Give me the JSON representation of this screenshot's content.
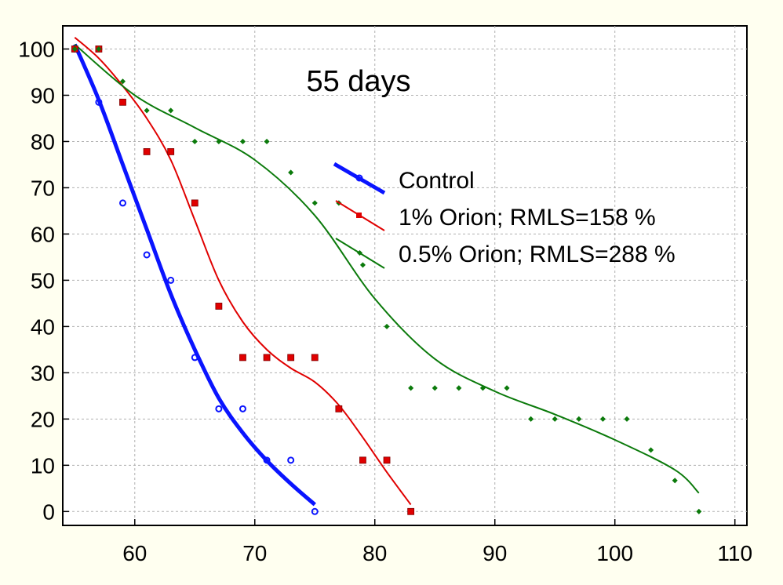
{
  "chart_data": {
    "type": "scatter",
    "title": "55 days",
    "xlabel": "",
    "ylabel": "",
    "xlim": [
      54,
      111
    ],
    "ylim": [
      -3,
      105
    ],
    "xticks": [
      60,
      70,
      80,
      90,
      100,
      110
    ],
    "yticks": [
      0,
      10,
      20,
      30,
      40,
      50,
      60,
      70,
      80,
      90,
      100
    ],
    "grid": true,
    "legend_position": "center-right",
    "series": [
      {
        "name": "Control",
        "color": "#0a14ff",
        "marker": "circle",
        "points": [
          [
            55,
            100
          ],
          [
            57,
            88.5
          ],
          [
            59,
            66.7
          ],
          [
            61,
            55.5
          ],
          [
            63,
            50
          ],
          [
            65,
            33.3
          ],
          [
            67,
            22.2
          ],
          [
            69,
            22.2
          ],
          [
            71,
            11.1
          ],
          [
            73,
            11.1
          ],
          [
            75,
            0
          ]
        ],
        "fit": [
          [
            55,
            101
          ],
          [
            57,
            89
          ],
          [
            59,
            75
          ],
          [
            61,
            61
          ],
          [
            63,
            47
          ],
          [
            65,
            35
          ],
          [
            67,
            24.5
          ],
          [
            69,
            17
          ],
          [
            71,
            11
          ],
          [
            73,
            6
          ],
          [
            75,
            1.5
          ]
        ]
      },
      {
        "name": "1% Orion; RMLS=158 %",
        "color": "#e00000",
        "marker": "square",
        "points": [
          [
            55,
            100
          ],
          [
            57,
            100
          ],
          [
            59,
            88.5
          ],
          [
            61,
            77.8
          ],
          [
            63,
            77.8
          ],
          [
            65,
            66.7
          ],
          [
            67,
            44.4
          ],
          [
            69,
            33.3
          ],
          [
            71,
            33.3
          ],
          [
            73,
            33.3
          ],
          [
            75,
            33.3
          ],
          [
            77,
            22.2
          ],
          [
            79,
            11.1
          ],
          [
            81,
            11.1
          ],
          [
            83,
            0
          ]
        ],
        "fit": [
          [
            55,
            102.5
          ],
          [
            57,
            98
          ],
          [
            59,
            92
          ],
          [
            61,
            85
          ],
          [
            63,
            76
          ],
          [
            65,
            63
          ],
          [
            67,
            50
          ],
          [
            69,
            41
          ],
          [
            71,
            35
          ],
          [
            73,
            31
          ],
          [
            75,
            28
          ],
          [
            77,
            23
          ],
          [
            79,
            16
          ],
          [
            81,
            8.5
          ],
          [
            83,
            1.5
          ]
        ]
      },
      {
        "name": "0.5% Orion; RMLS=288 %",
        "color": "#0b7a0b",
        "marker": "diamond",
        "points": [
          [
            55,
            100
          ],
          [
            57,
            100
          ],
          [
            59,
            93
          ],
          [
            61,
            86.7
          ],
          [
            63,
            86.7
          ],
          [
            65,
            80
          ],
          [
            67,
            80
          ],
          [
            69,
            80
          ],
          [
            71,
            80
          ],
          [
            73,
            73.3
          ],
          [
            75,
            66.7
          ],
          [
            77,
            66.7
          ],
          [
            79,
            53.3
          ],
          [
            81,
            40
          ],
          [
            83,
            26.7
          ],
          [
            85,
            26.7
          ],
          [
            87,
            26.7
          ],
          [
            89,
            26.7
          ],
          [
            91,
            26.7
          ],
          [
            93,
            20
          ],
          [
            95,
            20
          ],
          [
            97,
            20
          ],
          [
            99,
            20
          ],
          [
            101,
            20
          ],
          [
            103,
            13.3
          ],
          [
            105,
            6.7
          ],
          [
            107,
            0
          ]
        ],
        "fit": [
          [
            55,
            101
          ],
          [
            60,
            90
          ],
          [
            65,
            83
          ],
          [
            70,
            76
          ],
          [
            75,
            64
          ],
          [
            80,
            46
          ],
          [
            85,
            33
          ],
          [
            90,
            26
          ],
          [
            95,
            21
          ],
          [
            100,
            15.5
          ],
          [
            105,
            9
          ],
          [
            107,
            4
          ]
        ]
      }
    ]
  }
}
